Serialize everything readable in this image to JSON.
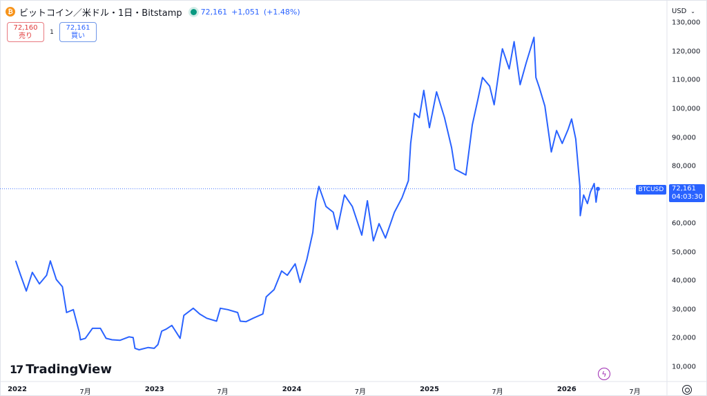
{
  "header": {
    "logo_glyph": "₿",
    "title": "ビットコイン／米ドル・1日・Bitstamp",
    "price": "72,161",
    "change": "+1,051",
    "change_pct": "(+1.48%)"
  },
  "trade": {
    "sell_price": "72,160",
    "sell_label": "売り",
    "spread": "1",
    "buy_price": "72,161",
    "buy_label": "買い"
  },
  "currency": {
    "label": "USD"
  },
  "last_price": {
    "symbol": "BTCUSD",
    "price": "72,161",
    "countdown": "04:03:30"
  },
  "brand": {
    "mark": "17",
    "name": "TradingView"
  },
  "colors": {
    "line": "#2962ff",
    "axis_text": "#131722",
    "border": "#e0e3eb"
  },
  "chart_data": {
    "type": "line",
    "title": "",
    "xlabel": "",
    "ylabel": "",
    "ylim": [
      5000,
      132000
    ],
    "y_ticks": [
      "130,000",
      "120,000",
      "110,000",
      "100,000",
      "90,000",
      "80,000",
      "70,000",
      "60,000",
      "50,000",
      "40,000",
      "30,000",
      "20,000",
      "10,000"
    ],
    "x_ticks": [
      {
        "label": "2022",
        "bold": true
      },
      {
        "label": "7月",
        "bold": false
      },
      {
        "label": "2023",
        "bold": true
      },
      {
        "label": "7月",
        "bold": false
      },
      {
        "label": "2024",
        "bold": true
      },
      {
        "label": "7月",
        "bold": false
      },
      {
        "label": "2025",
        "bold": true
      },
      {
        "label": "7月",
        "bold": false
      },
      {
        "label": "2026",
        "bold": true
      },
      {
        "label": "7月",
        "bold": false
      }
    ],
    "last_value": 72161,
    "series": [
      {
        "x": [
          "2021-12-28",
          "2022-01-10",
          "2022-01-25",
          "2022-02-10",
          "2022-03-01",
          "2022-03-20",
          "2022-03-30",
          "2022-04-15",
          "2022-05-01",
          "2022-05-12",
          "2022-05-30",
          "2022-06-15",
          "2022-06-18",
          "2022-07-01",
          "2022-07-20",
          "2022-08-10",
          "2022-08-25",
          "2022-09-10",
          "2022-10-01",
          "2022-10-25",
          "2022-11-05",
          "2022-11-10",
          "2022-11-21",
          "2022-12-15",
          "2022-12-31",
          "2023-01-10",
          "2023-01-20",
          "2023-02-01",
          "2023-02-16",
          "2023-03-10",
          "2023-03-20",
          "2023-04-14",
          "2023-05-01",
          "2023-05-20",
          "2023-06-15",
          "2023-06-25",
          "2023-07-15",
          "2023-08-10",
          "2023-08-17",
          "2023-09-01",
          "2023-09-20",
          "2023-10-16",
          "2023-10-25",
          "2023-11-15",
          "2023-12-05",
          "2023-12-20",
          "2024-01-10",
          "2024-01-23",
          "2024-02-10",
          "2024-02-26",
          "2024-03-05",
          "2024-03-13",
          "2024-04-01",
          "2024-04-20",
          "2024-05-01",
          "2024-05-20",
          "2024-06-10",
          "2024-07-05",
          "2024-07-20",
          "2024-08-05",
          "2024-08-20",
          "2024-09-06",
          "2024-09-30",
          "2024-10-20",
          "2024-11-06",
          "2024-11-12",
          "2024-11-22",
          "2024-12-05",
          "2024-12-17",
          "2025-01-01",
          "2025-01-20",
          "2025-02-10",
          "2025-03-01",
          "2025-03-10",
          "2025-04-08",
          "2025-04-25",
          "2025-05-10",
          "2025-05-22",
          "2025-06-10",
          "2025-06-22",
          "2025-07-10",
          "2025-07-14",
          "2025-08-01",
          "2025-08-14",
          "2025-08-30",
          "2025-09-15",
          "2025-10-06",
          "2025-10-11",
          "2025-10-20",
          "2025-11-04",
          "2025-11-21",
          "2025-12-05",
          "2025-12-20",
          "2026-01-05",
          "2026-01-14",
          "2026-01-25",
          "2026-02-05",
          "2026-02-06",
          "2026-02-15",
          "2026-02-25",
          "2026-03-05",
          "2026-03-15",
          "2026-03-20",
          "2026-03-25"
        ],
        "values": [
          47000,
          42000,
          36500,
          43000,
          39000,
          42000,
          47000,
          40500,
          38000,
          29000,
          30000,
          22000,
          19500,
          20000,
          23500,
          23500,
          20000,
          19500,
          19300,
          20500,
          20300,
          16500,
          16000,
          16800,
          16500,
          17800,
          22500,
          23200,
          24500,
          20000,
          28000,
          30500,
          28500,
          27000,
          26000,
          30500,
          30000,
          29000,
          26000,
          25800,
          27000,
          28500,
          34500,
          37000,
          43500,
          42000,
          46000,
          39500,
          47500,
          57000,
          68000,
          73000,
          66000,
          64000,
          58000,
          70000,
          66000,
          56000,
          68000,
          54000,
          60000,
          55000,
          64000,
          69000,
          75000,
          88000,
          98500,
          97000,
          106500,
          93500,
          106000,
          97000,
          86500,
          79000,
          77000,
          94500,
          103500,
          111000,
          108000,
          101500,
          118000,
          121000,
          114000,
          123500,
          108500,
          116000,
          125000,
          111000,
          107500,
          101000,
          85000,
          92500,
          88000,
          93000,
          96500,
          89500,
          73000,
          62800,
          70000,
          67000,
          71000,
          74000,
          67500,
          72161
        ]
      }
    ]
  }
}
